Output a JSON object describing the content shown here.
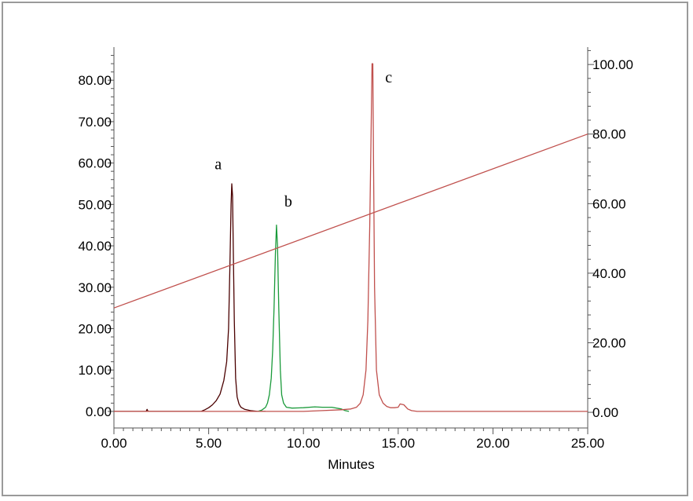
{
  "chart_data": {
    "type": "line",
    "title": "",
    "xlabel": "Minutes",
    "ylabel": "",
    "xlim": [
      0,
      25
    ],
    "ylim_left": [
      -4,
      88
    ],
    "ylim_right": [
      -4.5,
      105
    ],
    "x_ticks": [
      0,
      5,
      10,
      15,
      20,
      25
    ],
    "x_tick_labels": [
      "0.00",
      "5.00",
      "10.00",
      "15.00",
      "20.00",
      "25.00"
    ],
    "y_ticks_left": [
      0,
      10,
      20,
      30,
      40,
      50,
      60,
      70,
      80
    ],
    "y_tick_labels_left": [
      "0.00",
      "10.00",
      "20.00",
      "30.00",
      "40.00",
      "50.00",
      "60.00",
      "70.00",
      "80.00"
    ],
    "y_ticks_right": [
      0,
      20,
      40,
      60,
      80,
      100
    ],
    "y_tick_labels_right": [
      "0.00",
      "20.00",
      "40.00",
      "60.00",
      "80.00",
      "100.00"
    ],
    "grid": false,
    "series": [
      {
        "color": "#4a0000",
        "axis": "left",
        "x": [
          0,
          1.7,
          1.75,
          1.8,
          4.6,
          4.8,
          5.0,
          5.2,
          5.4,
          5.6,
          5.8,
          5.95,
          6.05,
          6.12,
          6.18,
          6.22,
          6.26,
          6.3,
          6.35,
          6.42,
          6.5,
          6.6,
          6.7,
          6.9,
          7.2,
          7.6,
          8.0
        ],
        "y": [
          0,
          0,
          0.5,
          0,
          0,
          0.4,
          0.9,
          1.6,
          2.6,
          4.2,
          7.5,
          12,
          20,
          35,
          50,
          55,
          52,
          38,
          22,
          8,
          3.5,
          1.8,
          1,
          0.5,
          0.2,
          0,
          0
        ]
      },
      {
        "color": "#1a9a3a",
        "axis": "left",
        "x": [
          7.6,
          7.8,
          8.0,
          8.1,
          8.2,
          8.3,
          8.38,
          8.45,
          8.52,
          8.58,
          8.63,
          8.7,
          8.78,
          8.85,
          8.95,
          9.1,
          9.4,
          10.0,
          10.6,
          11.0,
          11.5,
          12.0,
          12.2,
          12.4
        ],
        "y": [
          0,
          0.3,
          1,
          2,
          4,
          8,
          15,
          25,
          38,
          45,
          40,
          25,
          10,
          4,
          2,
          1,
          0.8,
          0.9,
          1.1,
          1.0,
          1.0,
          0.6,
          0.2,
          0
        ]
      },
      {
        "color": "#c0504d",
        "axis": "left",
        "x": [
          0,
          10.0,
          11.0,
          12.0,
          12.5,
          12.8,
          13.0,
          13.15,
          13.3,
          13.4,
          13.5,
          13.58,
          13.62,
          13.66,
          13.7,
          13.75,
          13.85,
          14.0,
          14.2,
          14.4,
          14.6,
          14.8,
          15.0,
          15.1,
          15.3,
          15.5,
          15.7,
          16.0,
          25
        ],
        "y": [
          0,
          0,
          0.2,
          0.4,
          0.6,
          1,
          2,
          4,
          10,
          22,
          45,
          70,
          84,
          84,
          60,
          30,
          10,
          4,
          2,
          1.2,
          0.9,
          0.9,
          1.0,
          1.8,
          1.6,
          0.6,
          0.2,
          0,
          0
        ]
      },
      {
        "color": "#c0504d",
        "axis": "right",
        "x": [
          0,
          25
        ],
        "y": [
          30,
          80
        ]
      }
    ],
    "annotations": [
      {
        "text": "a",
        "x": 5.5,
        "y": 58.5
      },
      {
        "text": "b",
        "x": 9.2,
        "y": 49.5
      },
      {
        "text": "c",
        "x": 14.5,
        "y": 79.5
      }
    ]
  }
}
